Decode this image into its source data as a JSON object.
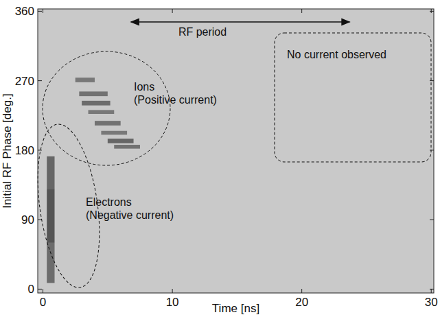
{
  "chart_data": {
    "type": "heatmap",
    "xlabel": "Time [ns]",
    "ylabel": "Initial RF Phase [deg.]",
    "xlim": [
      -0.4,
      30.2
    ],
    "ylim": [
      -5,
      363
    ],
    "xticks": [
      0,
      10,
      20,
      30
    ],
    "yticks": [
      0,
      90,
      180,
      270,
      360
    ],
    "grid": false,
    "cells": [
      {
        "x": [
          0.3,
          0.9
        ],
        "y": [
          8,
          60
        ],
        "value": -0.8
      },
      {
        "x": [
          0.3,
          0.9
        ],
        "y": [
          60,
          130
        ],
        "value": -1
      },
      {
        "x": [
          0.3,
          0.9
        ],
        "y": [
          130,
          172
        ],
        "value": -0.85
      },
      {
        "x": [
          2.5,
          4.0
        ],
        "y": [
          268,
          274
        ],
        "value": 0.7
      },
      {
        "x": [
          2.8,
          5.0
        ],
        "y": [
          250,
          256
        ],
        "value": 0.75
      },
      {
        "x": [
          3.0,
          5.2
        ],
        "y": [
          238,
          244
        ],
        "value": 0.8
      },
      {
        "x": [
          3.5,
          5.5
        ],
        "y": [
          227,
          232
        ],
        "value": 0.7
      },
      {
        "x": [
          4.0,
          6.0
        ],
        "y": [
          212,
          218
        ],
        "value": 0.75
      },
      {
        "x": [
          4.5,
          6.5
        ],
        "y": [
          200,
          205
        ],
        "value": 0.7
      },
      {
        "x": [
          5.0,
          7.0
        ],
        "y": [
          189,
          195
        ],
        "value": 0.85
      },
      {
        "x": [
          5.5,
          7.5
        ],
        "y": [
          182,
          187
        ],
        "value": 0.75
      }
    ],
    "annotations": [
      {
        "lines": [
          "RF period"
        ]
      },
      {
        "lines": [
          "Ions",
          "(Positive current)"
        ]
      },
      {
        "lines": [
          "Electrons",
          "(Negative current)"
        ]
      },
      {
        "lines": [
          "No current observed"
        ]
      }
    ]
  }
}
